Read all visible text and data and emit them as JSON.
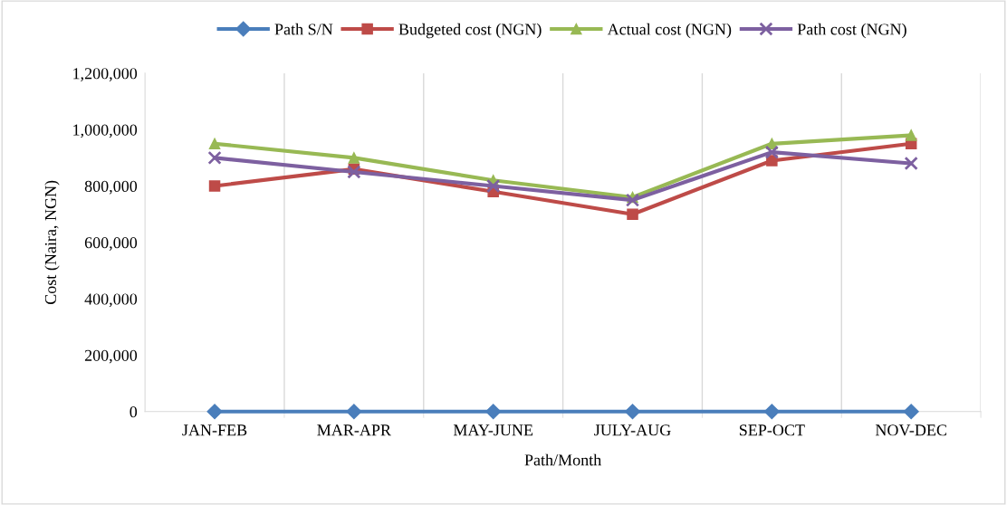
{
  "chart_data": {
    "type": "line",
    "xlabel": "Path/Month",
    "ylabel": "Cost (Naira, NGN)",
    "categories": [
      "JAN-FEB",
      "MAR-APR",
      "MAY-JUNE",
      "JULY-AUG",
      "SEP-OCT",
      "NOV-DEC"
    ],
    "series": [
      {
        "name": "Path S/N",
        "color": "#4a7ebb",
        "marker": "diamond",
        "values": [
          0,
          0,
          0,
          0,
          0,
          0
        ]
      },
      {
        "name": "Budgeted cost (NGN)",
        "color": "#be4b48",
        "marker": "square",
        "values": [
          800000,
          860000,
          780000,
          700000,
          890000,
          950000
        ]
      },
      {
        "name": "Actual cost (NGN)",
        "color": "#98b954",
        "marker": "triangle",
        "values": [
          950000,
          900000,
          820000,
          760000,
          950000,
          980000
        ]
      },
      {
        "name": "Path cost (NGN)",
        "color": "#7d60a0",
        "marker": "cross",
        "values": [
          900000,
          850000,
          800000,
          750000,
          920000,
          880000
        ]
      }
    ],
    "ylim": [
      0,
      1200000
    ],
    "yticks": [
      {
        "value": 0,
        "label": "0"
      },
      {
        "value": 200000,
        "label": "200,000"
      },
      {
        "value": 400000,
        "label": "400,000"
      },
      {
        "value": 600000,
        "label": "600,000"
      },
      {
        "value": 800000,
        "label": "800,000"
      },
      {
        "value": 1000000,
        "label": "1,000,000"
      },
      {
        "value": 1200000,
        "label": "1,200,000"
      }
    ],
    "grid": "x",
    "legend": "top",
    "line_style": "solid"
  }
}
